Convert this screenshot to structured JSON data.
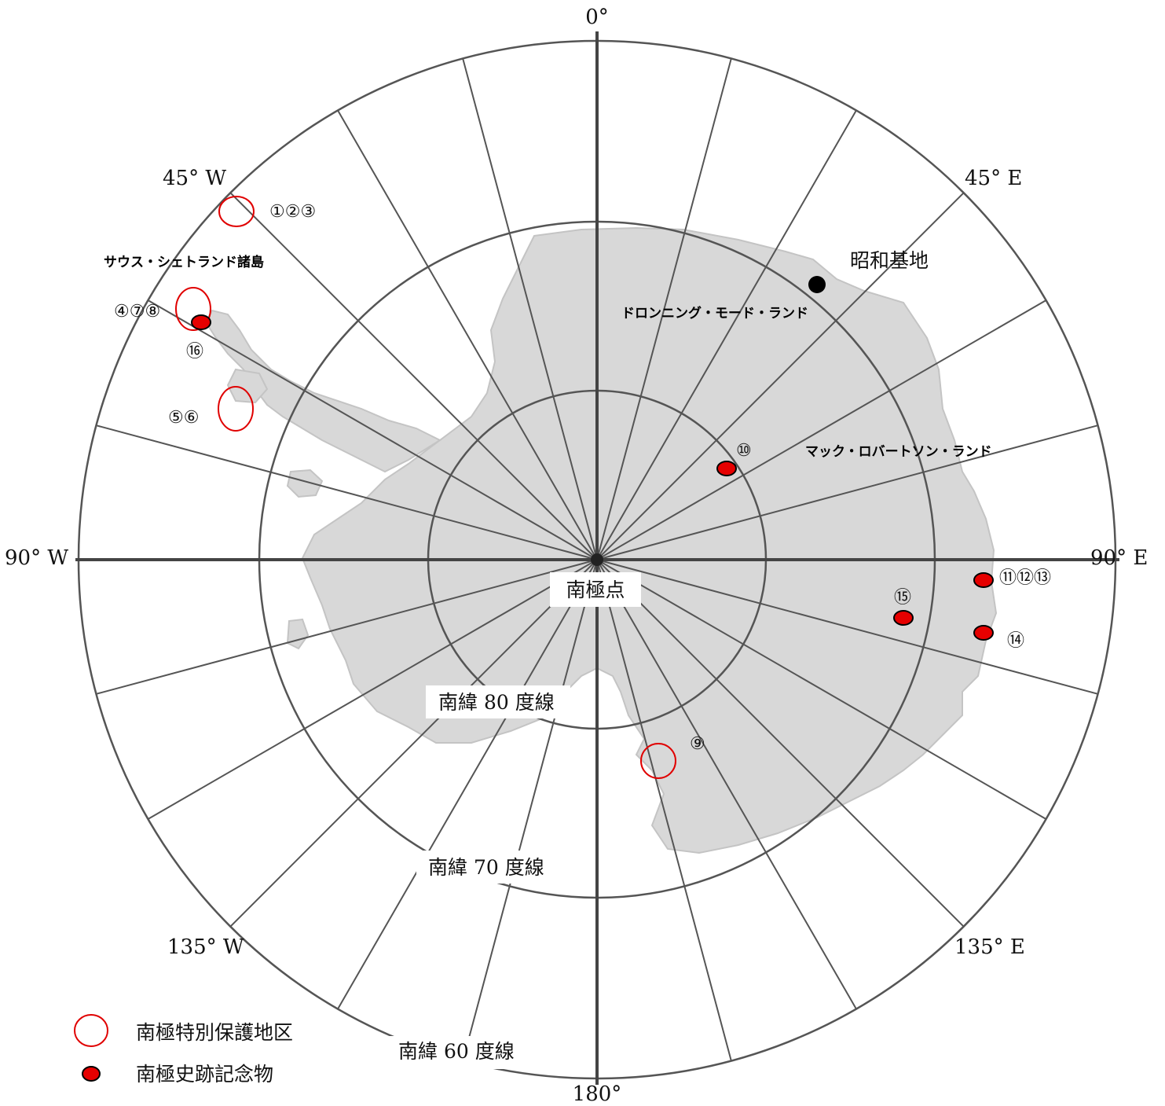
{
  "map": {
    "directions": {
      "n": "0°",
      "s": "180°",
      "w": "90° W",
      "e": "90° E",
      "nw": "45° W",
      "ne": "45° E",
      "sw": "135° W",
      "se": "135° E"
    },
    "latitude_labels": {
      "lat80": "南緯 80 度線",
      "lat70": "南緯 70 度線",
      "lat60": "南緯 60 度線"
    },
    "pole_label": "南極点",
    "regions": {
      "south_shetland": "サウス・シェトランド諸島",
      "dronning_maud": "ドロンニング・モード・ランド",
      "mac_robertson": "マック・ロバートソン・ランド"
    },
    "station": {
      "label": "昭和基地",
      "color": "#000000"
    },
    "site_labels": {
      "s123": "①②③",
      "s478": "④⑦⑧",
      "s16": "⑯",
      "s56": "⑤⑥",
      "s10": "⑩",
      "s111213": "⑪⑫⑬",
      "s15": "⑮",
      "s14": "⑭",
      "s9": "⑨"
    },
    "colors": {
      "protected_area": "#e00000",
      "monument_fill": "#e60000",
      "land": "#d8d8d8",
      "grid": "#555555"
    }
  },
  "legend": {
    "protected_area": "南極特別保護地区",
    "historic_monument": "南極史跡記念物"
  }
}
